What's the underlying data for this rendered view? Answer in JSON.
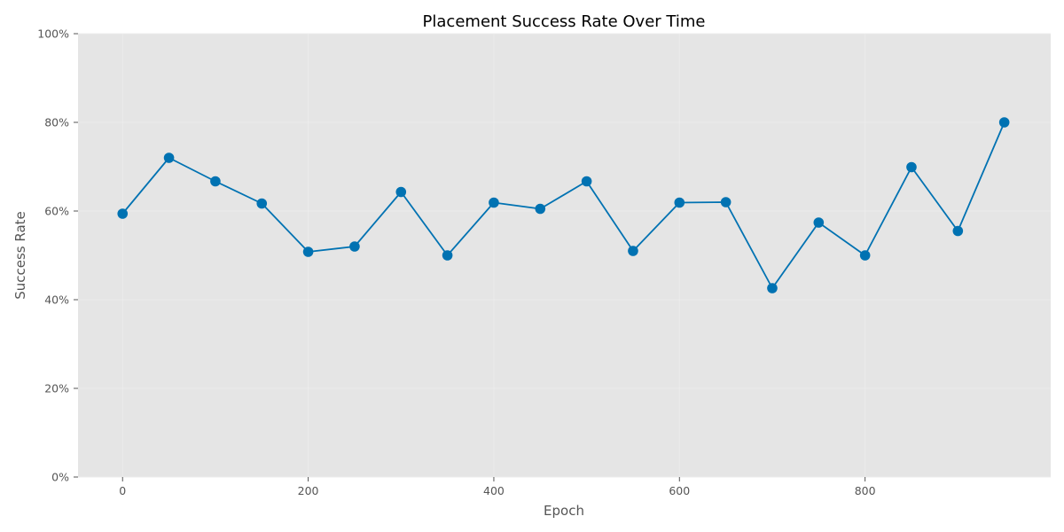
{
  "chart_data": {
    "type": "line",
    "title": "Placement Success Rate Over Time",
    "xlabel": "Epoch",
    "ylabel": "Success Rate",
    "xlim": [
      -48,
      1000
    ],
    "ylim": [
      0,
      1
    ],
    "xticks": [
      0,
      200,
      400,
      600,
      800
    ],
    "xtick_labels": [
      "0",
      "200",
      "400",
      "600",
      "800"
    ],
    "yticks": [
      0,
      0.2,
      0.4,
      0.6,
      0.8,
      1.0
    ],
    "ytick_labels": [
      "0%",
      "20%",
      "40%",
      "60%",
      "80%",
      "100%"
    ],
    "grid": true,
    "series": [
      {
        "color": "#0072b2",
        "x": [
          0,
          50,
          100,
          150,
          200,
          250,
          300,
          350,
          400,
          450,
          500,
          550,
          600,
          650,
          700,
          750,
          800,
          850,
          900,
          950
        ],
        "values": [
          0.594,
          0.72,
          0.667,
          0.617,
          0.508,
          0.52,
          0.643,
          0.5,
          0.619,
          0.605,
          0.667,
          0.51,
          0.619,
          0.62,
          0.426,
          0.574,
          0.5,
          0.699,
          0.555,
          0.8
        ]
      }
    ],
    "background": "#e5e5e5",
    "grid_color": "#ececec"
  }
}
